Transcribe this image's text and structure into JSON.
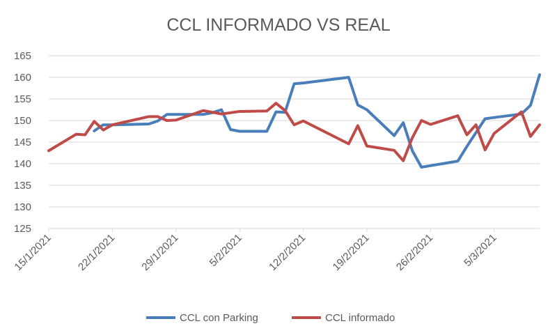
{
  "chart_data": {
    "type": "line",
    "title": "CCL INFORMADO VS REAL",
    "xlabel": "",
    "ylabel": "",
    "ylim": [
      125,
      165
    ],
    "yticks": [
      165,
      160,
      155,
      150,
      145,
      140,
      135,
      130,
      125
    ],
    "xticks": [
      "15/1/2021",
      "22/1/2021",
      "29/1/2021",
      "5/2/2021",
      "12/2/2021",
      "19/2/2021",
      "26/2/2021",
      "5/3/2021"
    ],
    "grid": true,
    "legend_position": "bottom",
    "series": [
      {
        "name": "CCL con Parking",
        "color": "#4a7ebb",
        "points": [
          [
            "2021-01-20",
            147.6
          ],
          [
            "2021-01-21",
            149.0
          ],
          [
            "2021-01-22",
            149.0
          ],
          [
            "2021-01-26",
            149.2
          ],
          [
            "2021-01-27",
            149.9
          ],
          [
            "2021-01-28",
            151.4
          ],
          [
            "2021-01-29",
            151.4
          ],
          [
            "2021-02-01",
            151.4
          ],
          [
            "2021-02-02",
            151.8
          ],
          [
            "2021-02-03",
            152.5
          ],
          [
            "2021-02-04",
            147.9
          ],
          [
            "2021-02-05",
            147.5
          ],
          [
            "2021-02-08",
            147.5
          ],
          [
            "2021-02-09",
            152.0
          ],
          [
            "2021-02-10",
            151.9
          ],
          [
            "2021-02-11",
            158.5
          ],
          [
            "2021-02-12",
            158.7
          ],
          [
            "2021-02-17",
            160.0
          ],
          [
            "2021-02-18",
            153.6
          ],
          [
            "2021-02-19",
            152.5
          ],
          [
            "2021-02-22",
            146.5
          ],
          [
            "2021-02-23",
            149.5
          ],
          [
            "2021-02-24",
            143.0
          ],
          [
            "2021-02-25",
            139.2
          ],
          [
            "2021-03-01",
            140.6
          ],
          [
            "2021-03-02",
            144.0
          ],
          [
            "2021-03-03",
            147.2
          ],
          [
            "2021-03-04",
            150.4
          ],
          [
            "2021-03-05",
            150.7
          ],
          [
            "2021-03-08",
            151.5
          ],
          [
            "2021-03-09",
            153.5
          ],
          [
            "2021-03-10",
            160.6
          ]
        ]
      },
      {
        "name": "CCL informado",
        "color": "#be4b48",
        "points": [
          [
            "2021-01-15",
            143.0
          ],
          [
            "2021-01-18",
            146.8
          ],
          [
            "2021-01-19",
            146.7
          ],
          [
            "2021-01-20",
            149.8
          ],
          [
            "2021-01-21",
            147.8
          ],
          [
            "2021-01-22",
            149.0
          ],
          [
            "2021-01-26",
            150.9
          ],
          [
            "2021-01-27",
            150.9
          ],
          [
            "2021-01-28",
            150.0
          ],
          [
            "2021-01-29",
            150.1
          ],
          [
            "2021-02-01",
            152.3
          ],
          [
            "2021-02-02",
            151.9
          ],
          [
            "2021-02-03",
            151.5
          ],
          [
            "2021-02-04",
            151.8
          ],
          [
            "2021-02-05",
            152.1
          ],
          [
            "2021-02-08",
            152.2
          ],
          [
            "2021-02-09",
            154.0
          ],
          [
            "2021-02-10",
            152.3
          ],
          [
            "2021-02-11",
            149.0
          ],
          [
            "2021-02-12",
            149.9
          ],
          [
            "2021-02-17",
            144.6
          ],
          [
            "2021-02-18",
            148.8
          ],
          [
            "2021-02-19",
            144.1
          ],
          [
            "2021-02-22",
            143.1
          ],
          [
            "2021-02-23",
            140.7
          ],
          [
            "2021-02-24",
            146.0
          ],
          [
            "2021-02-25",
            150.0
          ],
          [
            "2021-02-26",
            149.1
          ],
          [
            "2021-03-01",
            151.1
          ],
          [
            "2021-03-02",
            146.7
          ],
          [
            "2021-03-03",
            149.0
          ],
          [
            "2021-03-04",
            143.2
          ],
          [
            "2021-03-05",
            147.0
          ],
          [
            "2021-03-08",
            152.0
          ],
          [
            "2021-03-09",
            146.3
          ],
          [
            "2021-03-10",
            149.0
          ]
        ]
      }
    ]
  }
}
